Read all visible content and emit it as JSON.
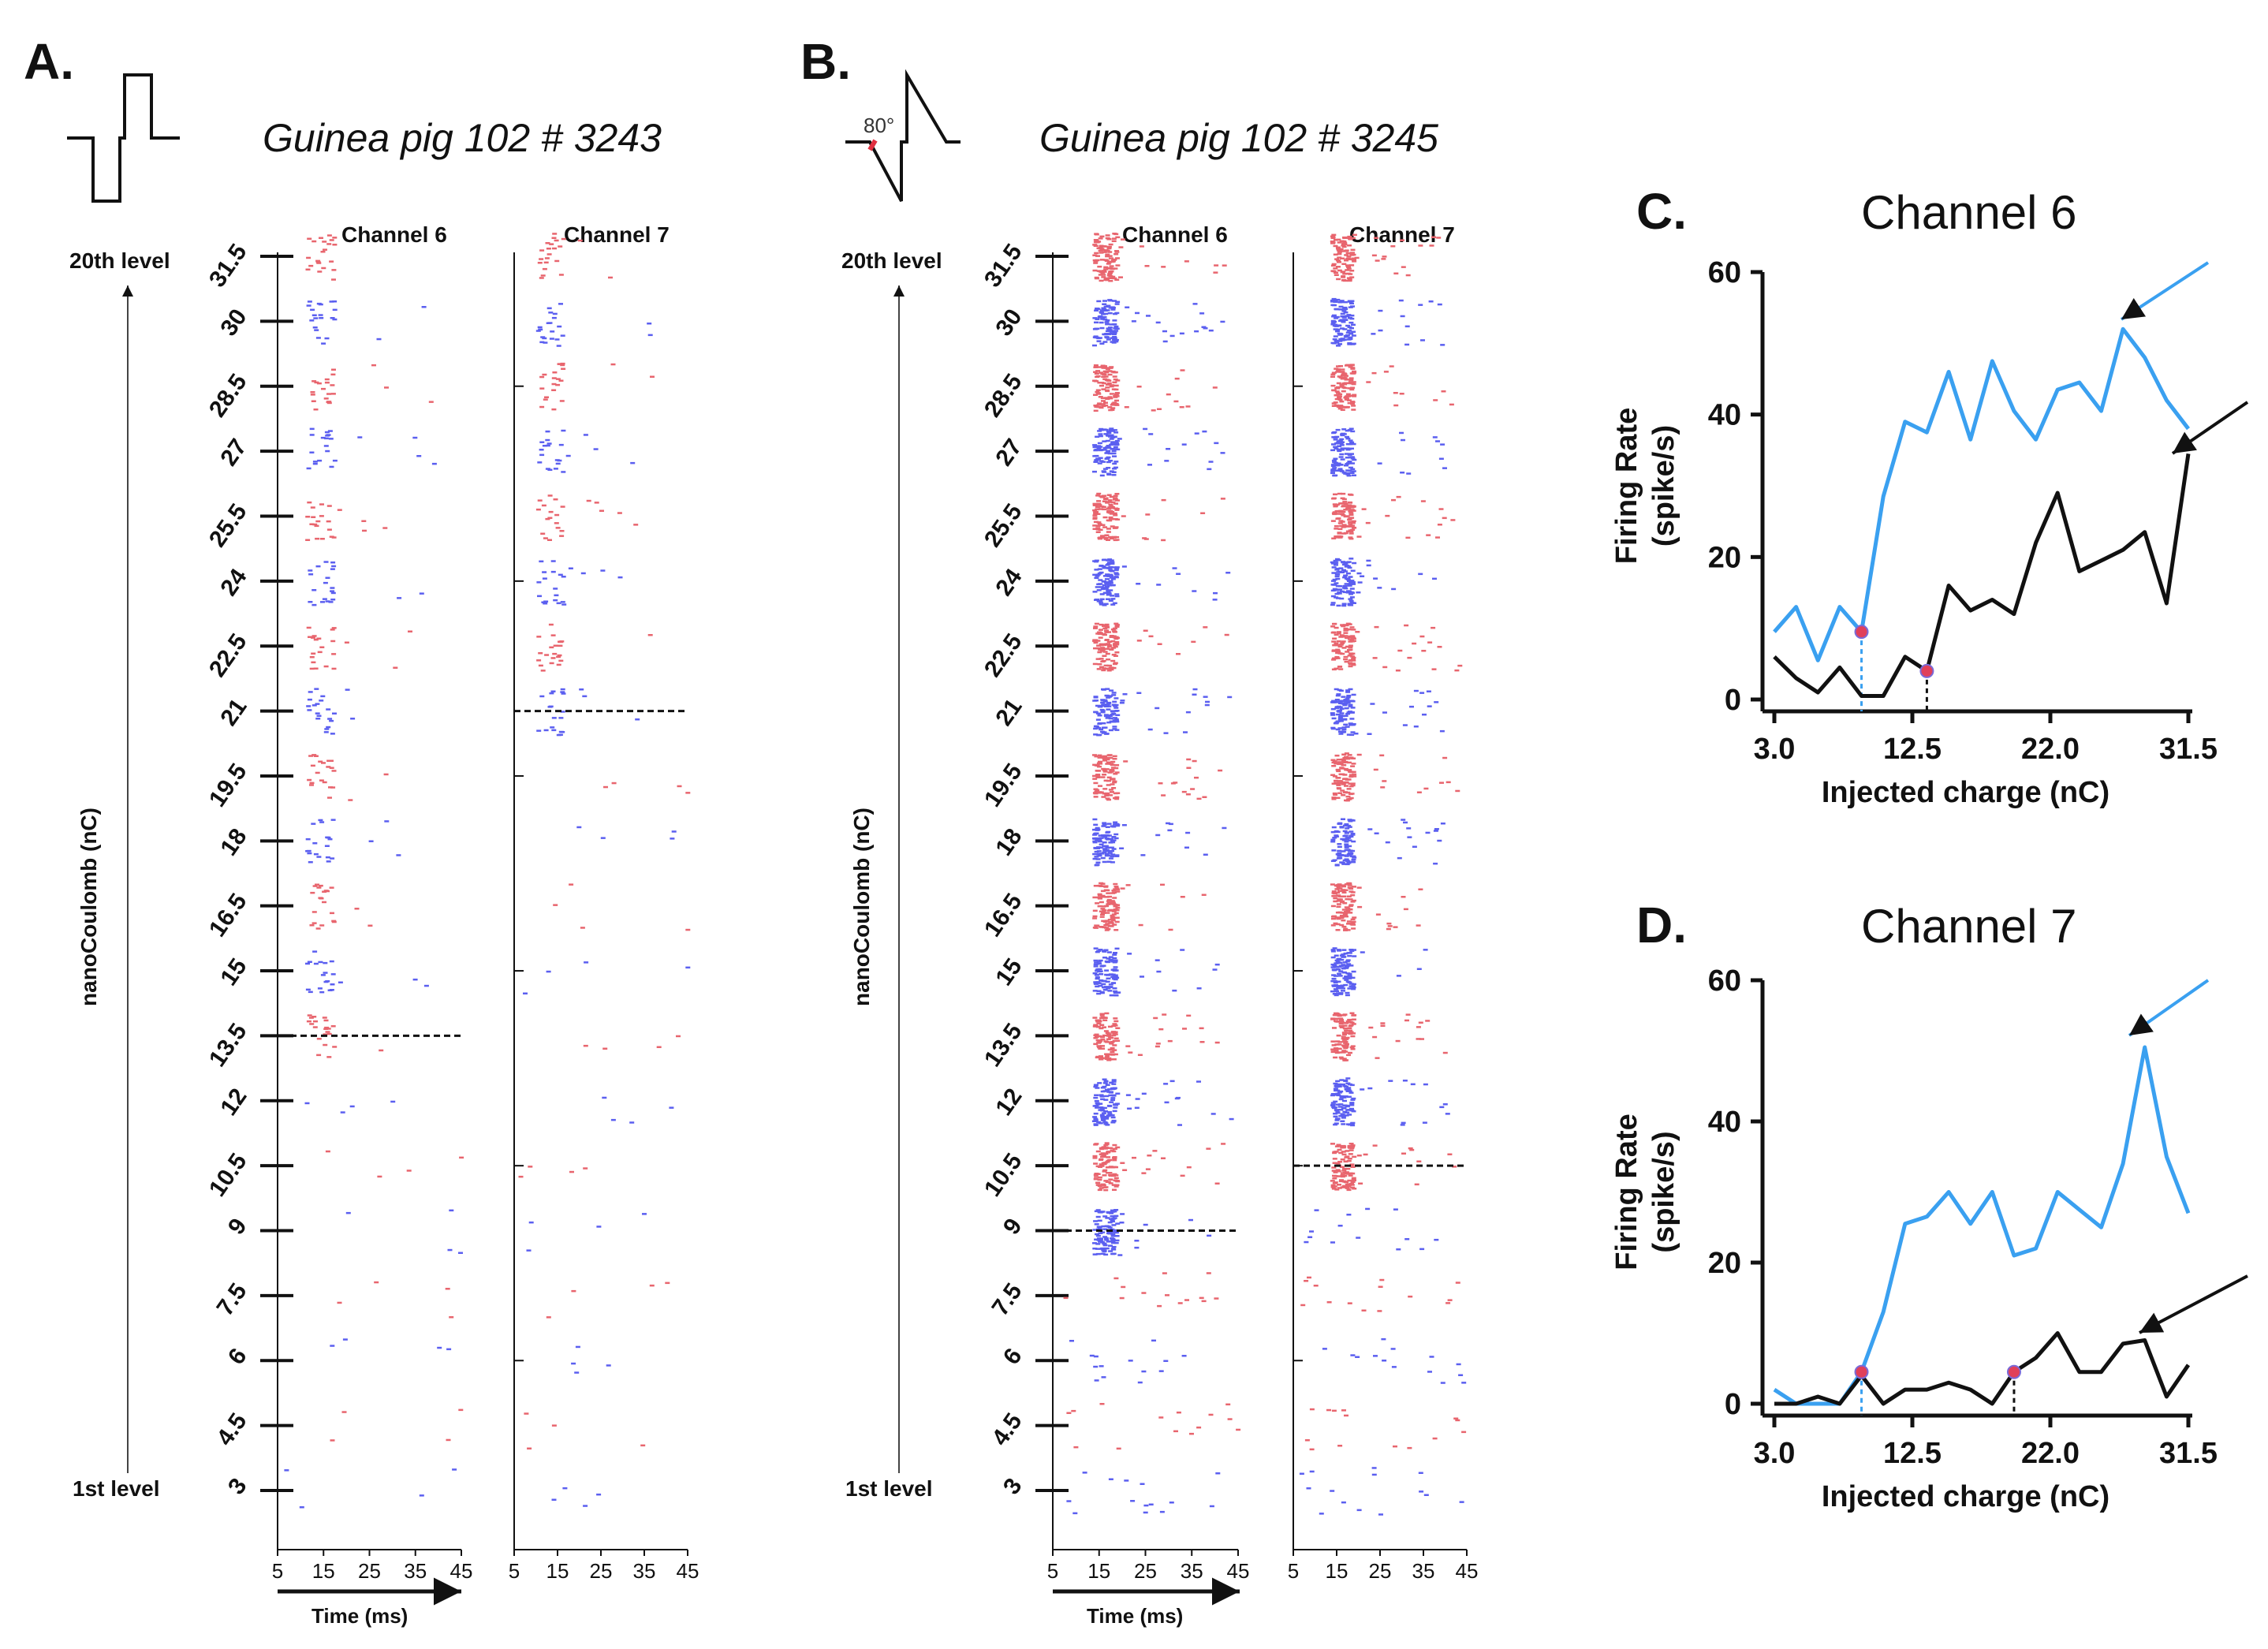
{
  "colors": {
    "red": "#e8656e",
    "blue": "#5b5ff0",
    "cyan": "#3aa0f0",
    "black": "#111111",
    "dot": "#e0405a"
  },
  "panel_a": {
    "letter": "A.",
    "title": "Guinea pig 102 # 3243",
    "level_top": "20th level",
    "level_bottom": "1st level",
    "ylabel": "nanoCoulomb (nC)",
    "xlabel": "Time (ms)",
    "channels": [
      "Channel 6",
      "Channel 7"
    ]
  },
  "panel_b": {
    "letter": "B.",
    "title": "Guinea pig 102 # 3245",
    "angle_label": "80°",
    "level_top": "20th level",
    "level_bottom": "1st level",
    "ylabel": "nanoCoulomb (nC)",
    "xlabel": "Time (ms)",
    "channels": [
      "Channel 6",
      "Channel 7"
    ]
  },
  "panel_c": {
    "letter": "C.",
    "title": "Channel 6"
  },
  "panel_d": {
    "letter": "D.",
    "title": "Channel 7"
  },
  "chart_data": [
    {
      "type": "scatter",
      "panel": "A",
      "title": "Guinea pig 102 # 3243",
      "subplots": [
        "Channel 6",
        "Channel 7"
      ],
      "xlabel": "Time (ms)",
      "ylabel": "nanoCoulomb (nC)",
      "x_ticks": [
        5,
        15,
        25,
        35,
        45
      ],
      "y_ticks": [
        3,
        4.5,
        6,
        7.5,
        9,
        10.5,
        12,
        13.5,
        15,
        16.5,
        18,
        19.5,
        21,
        22.5,
        24,
        25.5,
        27,
        28.5,
        30,
        31.5
      ],
      "xlim": [
        5,
        45
      ],
      "ylim": [
        3,
        31.5
      ],
      "thresholds_nC": [
        13.5,
        21
      ]
    },
    {
      "type": "scatter",
      "panel": "B",
      "title": "Guinea pig 102 # 3245",
      "subplots": [
        "Channel 6",
        "Channel 7"
      ],
      "xlabel": "Time (ms)",
      "ylabel": "nanoCoulomb (nC)",
      "x_ticks": [
        5,
        15,
        25,
        35,
        45
      ],
      "y_ticks": [
        3,
        4.5,
        6,
        7.5,
        9,
        10.5,
        12,
        13.5,
        15,
        16.5,
        18,
        19.5,
        21,
        22.5,
        24,
        25.5,
        27,
        28.5,
        30,
        31.5
      ],
      "xlim": [
        5,
        45
      ],
      "ylim": [
        3,
        31.5
      ],
      "thresholds_nC": [
        9,
        10.5
      ]
    },
    {
      "type": "line",
      "panel": "C",
      "title": "Channel 6",
      "xlabel": "Injected charge (nC)",
      "ylabel": "Firing Rate (spike/s)",
      "xlim": [
        3,
        31.5
      ],
      "ylim": [
        0,
        60
      ],
      "x_ticks": [
        "3.0",
        "12.5",
        "22.0",
        "31.5"
      ],
      "y_ticks": [
        0,
        20,
        40,
        60
      ],
      "x": [
        3,
        4.5,
        6,
        7.5,
        9,
        10.5,
        12,
        13.5,
        15,
        16.5,
        18,
        19.5,
        21,
        22.5,
        24,
        25.5,
        27,
        28.5,
        30,
        31.5
      ],
      "series": [
        {
          "color": "cyan",
          "values": [
            9.5,
            13,
            5.5,
            13,
            9.5,
            28.5,
            39,
            37.5,
            46,
            36.5,
            47.5,
            40.5,
            36.5,
            43.5,
            44.5,
            40.5,
            52,
            48,
            42,
            38
          ]
        },
        {
          "color": "black",
          "values": [
            6,
            3,
            1,
            4.5,
            0.5,
            0.5,
            6,
            4,
            16,
            12.5,
            14,
            12,
            22,
            29,
            18,
            19.5,
            21,
            23.5,
            13.5,
            34.5
          ]
        }
      ],
      "threshold_markers": [
        {
          "x": 9,
          "y": 9.5
        },
        {
          "x": 13.5,
          "y": 4
        }
      ]
    },
    {
      "type": "line",
      "panel": "D",
      "title": "Channel 7",
      "xlabel": "Injected charge (nC)",
      "ylabel": "Firing Rate (spike/s)",
      "xlim": [
        3,
        31.5
      ],
      "ylim": [
        0,
        60
      ],
      "x_ticks": [
        "3.0",
        "12.5",
        "22.0",
        "31.5"
      ],
      "y_ticks": [
        0,
        20,
        40,
        60
      ],
      "x": [
        3,
        4.5,
        6,
        7.5,
        9,
        10.5,
        12,
        13.5,
        15,
        16.5,
        18,
        19.5,
        21,
        22.5,
        24,
        25.5,
        27,
        28.5,
        30,
        31.5
      ],
      "series": [
        {
          "color": "cyan",
          "values": [
            2,
            0,
            0,
            0,
            4.5,
            13,
            25.5,
            26.5,
            30,
            25.5,
            30,
            21,
            22,
            30,
            27.5,
            25,
            34,
            50.5,
            35,
            27
          ]
        },
        {
          "color": "black",
          "values": [
            0,
            0,
            1,
            0,
            4,
            0,
            2,
            2,
            3,
            2,
            0,
            4.5,
            6.5,
            10,
            4.5,
            4.5,
            8.5,
            9,
            1,
            5.5
          ]
        }
      ],
      "threshold_markers": [
        {
          "x": 9,
          "y": 4.5
        },
        {
          "x": 19.5,
          "y": 4.5
        }
      ]
    }
  ]
}
